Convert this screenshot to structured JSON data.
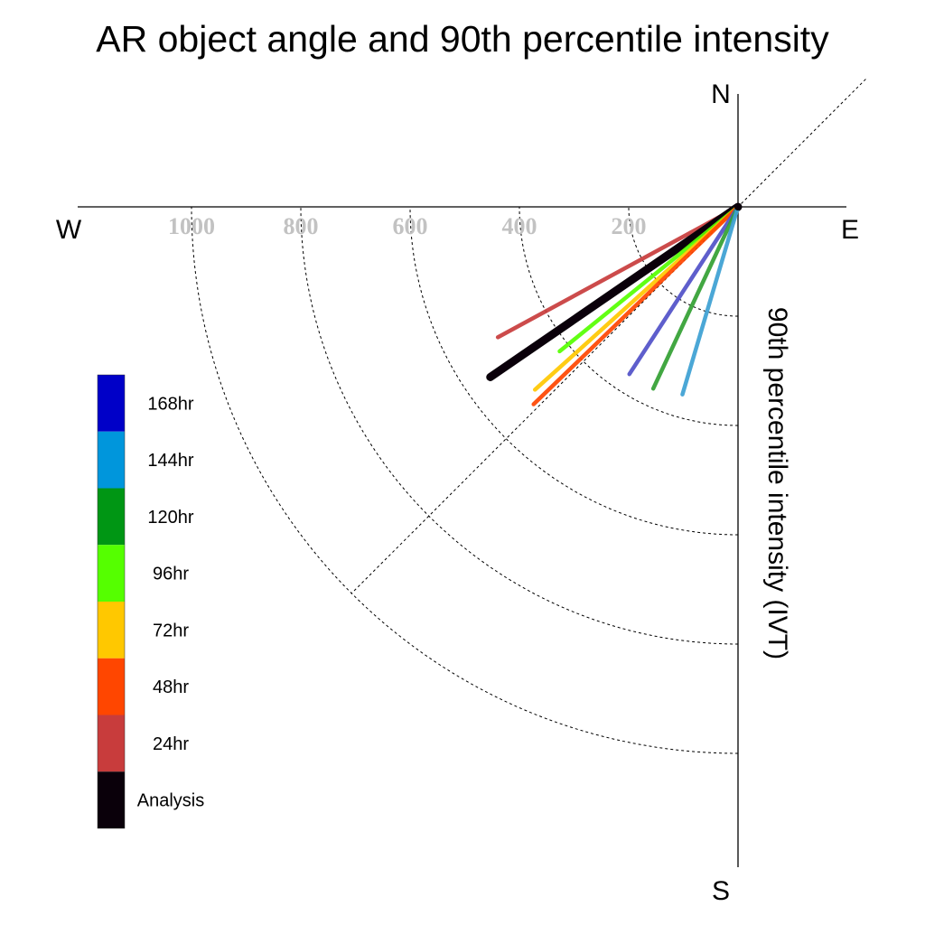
{
  "chart_data": {
    "type": "polar-line",
    "title": "AR object angle and 90th percentile intensity",
    "ylabel": "90th percentile intensity (IVT)",
    "compass": {
      "north": "N",
      "south": "S",
      "east": "E",
      "west": "W"
    },
    "radial_ticks": [
      "1000",
      "800",
      "600",
      "400",
      "200"
    ],
    "radial_tick_values": [
      1000,
      800,
      600,
      400,
      200
    ],
    "dashed_arcs": [
      200,
      400,
      600,
      800,
      1000
    ],
    "radial_max": 1000,
    "series": [
      {
        "name": "24hr",
        "angle_deg": 241.5,
        "intensity": 500,
        "color": "#c83c3c"
      },
      {
        "name": "Analysis",
        "angle_deg": 235.5,
        "intensity": 550,
        "color": "#0a000a"
      },
      {
        "name": "96hr",
        "angle_deg": 231.0,
        "intensity": 420,
        "color": "#55ff00"
      },
      {
        "name": "72hr",
        "angle_deg": 228.0,
        "intensity": 500,
        "color": "#ffc800"
      },
      {
        "name": "48hr",
        "angle_deg": 226.0,
        "intensity": 520,
        "color": "#ff4500"
      },
      {
        "name": "168hr",
        "angle_deg": 213.0,
        "intensity": 365,
        "color": "#5050c8"
      },
      {
        "name": "120hr",
        "angle_deg": 205.0,
        "intensity": 367,
        "color": "#32a032"
      },
      {
        "name": "144hr",
        "angle_deg": 196.5,
        "intensity": 358,
        "color": "#3ca0d2"
      }
    ],
    "legend": {
      "placement": "left",
      "entries": [
        {
          "label": "168hr",
          "color": "#0000c8"
        },
        {
          "label": "144hr",
          "color": "#0096dc"
        },
        {
          "label": "120hr",
          "color": "#009614"
        },
        {
          "label": "96hr",
          "color": "#55ff00"
        },
        {
          "label": "72hr",
          "color": "#ffc800"
        },
        {
          "label": "48hr",
          "color": "#ff4600"
        },
        {
          "label": "24hr",
          "color": "#c83c3c"
        },
        {
          "label": "Analysis",
          "color": "#0a000a"
        }
      ]
    }
  }
}
